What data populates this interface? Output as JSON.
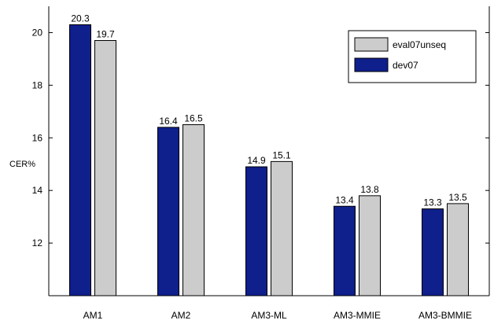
{
  "chart_data": {
    "type": "bar",
    "ylabel": "CER%",
    "xlabel": "",
    "title": "",
    "categories": [
      "AM1",
      "AM2",
      "AM3-ML",
      "AM3-MMIE",
      "AM3-BMMIE"
    ],
    "series": [
      {
        "name": "dev07",
        "color": "#0f1f8c",
        "values": [
          20.3,
          16.4,
          14.9,
          13.4,
          13.3
        ]
      },
      {
        "name": "eval07unseq",
        "color": "#cccccc",
        "values": [
          19.7,
          16.5,
          15.1,
          13.8,
          13.5
        ]
      }
    ],
    "ylim": [
      10,
      21
    ],
    "yticks": [
      12,
      14,
      16,
      18,
      20
    ],
    "legend": {
      "position": "top-right",
      "order": [
        "eval07unseq",
        "dev07"
      ]
    },
    "grid": false
  }
}
